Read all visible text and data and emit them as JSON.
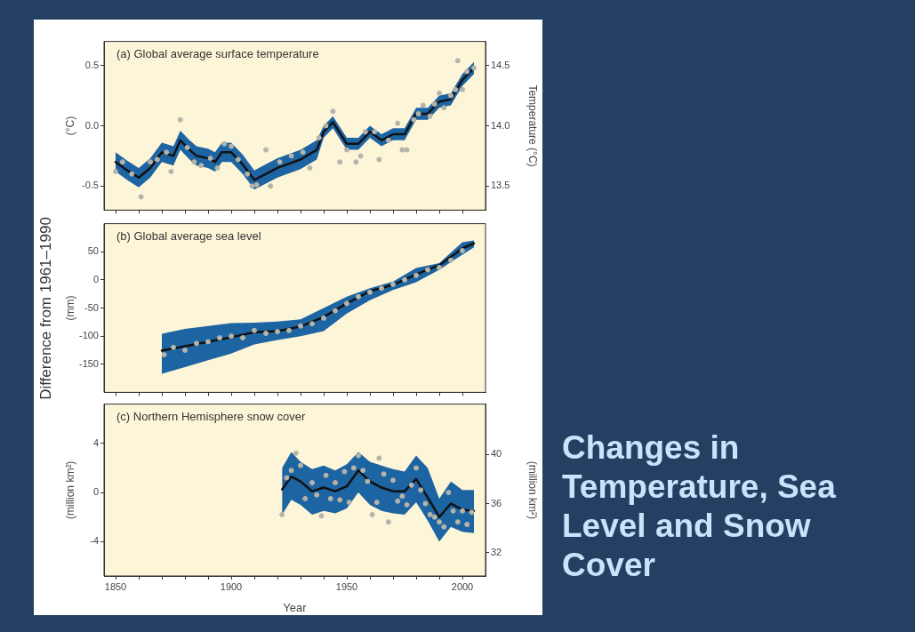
{
  "chart_data": [
    {
      "type": "line",
      "title": "(a) Global average surface temperature",
      "ylabel": "(°C)",
      "y2label": "Temperature (°C)",
      "xlim": [
        1845,
        2010
      ],
      "xticks": [
        1850,
        {
          "value": 1860,
          "label": null
        },
        {
          "value": 1870,
          "label": null
        },
        {
          "value": 1880,
          "label": null
        },
        {
          "value": 1890,
          "label": null
        },
        1900,
        {
          "value": 1910,
          "label": null
        },
        {
          "value": 1920,
          "label": null
        },
        {
          "value": 1930,
          "label": null
        },
        {
          "value": 1940,
          "label": null
        },
        1950,
        {
          "value": 1960,
          "label": null
        },
        {
          "value": 1970,
          "label": null
        },
        {
          "value": 1980,
          "label": null
        },
        {
          "value": 1990,
          "label": null
        },
        2000
      ],
      "ylim": [
        -0.7,
        0.7
      ],
      "yticks": [
        -0.5,
        {
          "value": 0,
          "label": "0.0"
        },
        0.5
      ],
      "y2lim": [
        13.3,
        14.7
      ],
      "y2ticks": [
        13.5,
        {
          "value": 14,
          "label": "14.0"
        },
        14.5
      ],
      "tick_labels": "y",
      "grid": false,
      "legend": false,
      "series": [
        {
          "type": "scatter",
          "marker": "circle",
          "color": "#b4b4aa",
          "x": [
            1850,
            1853,
            1857,
            1861,
            1865,
            1868,
            1872,
            1874,
            1878,
            1881,
            1884,
            1887,
            1891,
            1894,
            1897,
            1900,
            1903,
            1907,
            1909,
            1911,
            1915,
            1917,
            1921,
            1926,
            1931,
            1934,
            1938,
            1941,
            1944,
            1947,
            1950,
            1954,
            1956,
            1958,
            1962,
            1964,
            1968,
            1972,
            1974,
            1976,
            1979,
            1981,
            1983,
            1986,
            1988,
            1990,
            1992,
            1995,
            1997,
            1998,
            2000,
            2002,
            2005
          ],
          "values": [
            -0.38,
            -0.3,
            -0.4,
            -0.59,
            -0.3,
            -0.28,
            -0.22,
            -0.38,
            0.05,
            -0.18,
            -0.3,
            -0.33,
            -0.27,
            -0.35,
            -0.15,
            -0.17,
            -0.28,
            -0.4,
            -0.5,
            -0.49,
            -0.2,
            -0.5,
            -0.3,
            -0.25,
            -0.22,
            -0.35,
            -0.1,
            0,
            0.12,
            -0.3,
            -0.2,
            -0.3,
            -0.25,
            -0.05,
            -0.05,
            -0.28,
            -0.12,
            0.02,
            -0.2,
            -0.2,
            0.05,
            0.1,
            0.17,
            0.08,
            0.18,
            0.27,
            0.15,
            0.25,
            0.3,
            0.54,
            0.3,
            0.45,
            0.48
          ]
        },
        {
          "type": "line",
          "color": "#111111",
          "x": [
            1850,
            1855,
            1860,
            1865,
            1870,
            1875,
            1878,
            1882,
            1885,
            1890,
            1893,
            1896,
            1900,
            1905,
            1910,
            1913,
            1920,
            1930,
            1937,
            1940,
            1944,
            1950,
            1955,
            1960,
            1965,
            1970,
            1975,
            1980,
            1985,
            1990,
            1995,
            2000,
            2005
          ],
          "values": [
            -0.3,
            -0.37,
            -0.43,
            -0.35,
            -0.22,
            -0.25,
            -0.12,
            -0.2,
            -0.25,
            -0.27,
            -0.3,
            -0.22,
            -0.22,
            -0.32,
            -0.45,
            -0.42,
            -0.35,
            -0.28,
            -0.2,
            -0.05,
            0.03,
            -0.15,
            -0.15,
            -0.05,
            -0.12,
            -0.07,
            -0.07,
            0.1,
            0.1,
            0.2,
            0.22,
            0.38,
            0.48
          ],
          "lower": [
            -0.38,
            -0.45,
            -0.51,
            -0.43,
            -0.3,
            -0.33,
            -0.2,
            -0.28,
            -0.33,
            -0.35,
            -0.38,
            -0.3,
            -0.3,
            -0.4,
            -0.53,
            -0.5,
            -0.43,
            -0.36,
            -0.28,
            -0.1,
            -0.02,
            -0.2,
            -0.2,
            -0.1,
            -0.17,
            -0.12,
            -0.12,
            0.05,
            0.05,
            0.15,
            0.17,
            0.33,
            0.43
          ],
          "upper": [
            -0.22,
            -0.29,
            -0.35,
            -0.27,
            -0.14,
            -0.17,
            -0.04,
            -0.12,
            -0.17,
            -0.19,
            -0.22,
            -0.14,
            -0.14,
            -0.24,
            -0.37,
            -0.34,
            -0.27,
            -0.2,
            -0.12,
            0,
            0.08,
            -0.1,
            -0.1,
            0,
            -0.07,
            -0.02,
            -0.02,
            0.15,
            0.15,
            0.25,
            0.27,
            0.43,
            0.53
          ]
        }
      ]
    },
    {
      "type": "line",
      "title": "(b) Global average sea level",
      "ylabel": "(mm)",
      "annotations": [
        "Difference from 1961–1990"
      ],
      "xlim": [
        1845,
        2010
      ],
      "xticks": [
        1850,
        {
          "value": 1860,
          "label": null
        },
        {
          "value": 1870,
          "label": null
        },
        {
          "value": 1880,
          "label": null
        },
        {
          "value": 1890,
          "label": null
        },
        1900,
        {
          "value": 1910,
          "label": null
        },
        {
          "value": 1920,
          "label": null
        },
        {
          "value": 1930,
          "label": null
        },
        {
          "value": 1940,
          "label": null
        },
        1950,
        {
          "value": 1960,
          "label": null
        },
        {
          "value": 1970,
          "label": null
        },
        {
          "value": 1980,
          "label": null
        },
        {
          "value": 1990,
          "label": null
        },
        2000
      ],
      "ylim": [
        -200,
        100
      ],
      "yticks": [
        -150,
        -100,
        -50,
        0,
        50
      ],
      "tick_labels": "y",
      "grid": false,
      "legend": false,
      "series": [
        {
          "type": "scatter",
          "marker": "circle",
          "color": "#b4b4aa",
          "x": [
            1871,
            1875,
            1880,
            1885,
            1890,
            1895,
            1900,
            1905,
            1910,
            1915,
            1920,
            1925,
            1930,
            1935,
            1940,
            1945,
            1950,
            1955,
            1960,
            1965,
            1970,
            1975,
            1980,
            1985,
            1990,
            1995,
            2000
          ],
          "values": [
            -133,
            -120,
            -125,
            -113,
            -110,
            -103,
            -100,
            -103,
            -90,
            -95,
            -92,
            -90,
            -82,
            -78,
            -68,
            -55,
            -42,
            -30,
            -22,
            -15,
            -8,
            0,
            8,
            18,
            22,
            35,
            52
          ]
        },
        {
          "type": "line",
          "color": "#111111",
          "x": [
            1870,
            1880,
            1890,
            1900,
            1910,
            1920,
            1930,
            1940,
            1950,
            1960,
            1970,
            1980,
            1990,
            2000,
            2005
          ],
          "values": [
            -126,
            -118,
            -110,
            -102,
            -93,
            -91,
            -83,
            -66,
            -42,
            -20,
            -9,
            10,
            26,
            56,
            65
          ],
          "lower": [
            -167,
            -155,
            -143,
            -131,
            -115,
            -107,
            -100,
            -91,
            -60,
            -36,
            -18,
            -4,
            18,
            45,
            58
          ],
          "upper": [
            -96,
            -87,
            -82,
            -77,
            -76,
            -74,
            -70,
            -50,
            -30,
            -15,
            -3,
            21,
            30,
            67,
            70
          ]
        }
      ]
    },
    {
      "type": "line",
      "title": "(c) Northern Hemisphere snow cover",
      "xlabel": "Year",
      "ylabel": "(million km²)",
      "y2label": "(million km²)",
      "xlim": [
        1845,
        2010
      ],
      "xticks": [
        1850,
        {
          "value": 1860,
          "label": null
        },
        {
          "value": 1870,
          "label": null
        },
        {
          "value": 1880,
          "label": null
        },
        {
          "value": 1890,
          "label": null
        },
        1900,
        {
          "value": 1910,
          "label": null
        },
        {
          "value": 1920,
          "label": null
        },
        {
          "value": 1930,
          "label": null
        },
        {
          "value": 1940,
          "label": null
        },
        1950,
        {
          "value": 1960,
          "label": null
        },
        {
          "value": 1970,
          "label": null
        },
        {
          "value": 1980,
          "label": null
        },
        {
          "value": 1990,
          "label": null
        },
        2000
      ],
      "ylim": [
        -6.8,
        7.2
      ],
      "yticks": [
        -4,
        0,
        4
      ],
      "y2lim": [
        30.1,
        44.1
      ],
      "y2ticks": [
        32,
        36,
        40
      ],
      "grid": false,
      "legend": false,
      "series": [
        {
          "type": "scatter",
          "marker": "circle",
          "color": "#b4b4aa",
          "x": [
            1922,
            1924,
            1926,
            1928,
            1930,
            1932,
            1935,
            1937,
            1939,
            1941,
            1943,
            1945,
            1947,
            1949,
            1951,
            1953,
            1955,
            1957,
            1959,
            1961,
            1963,
            1964,
            1966,
            1968,
            1970,
            1972,
            1974,
            1976,
            1978,
            1980,
            1982,
            1984,
            1986,
            1988,
            1990,
            1992,
            1994,
            1996,
            1998,
            2000,
            2002,
            2004
          ],
          "values": [
            -1.8,
            1.2,
            1.8,
            3.2,
            2.2,
            -0.5,
            0.8,
            -0.2,
            -1.9,
            1.4,
            -0.5,
            0.8,
            -0.6,
            1.7,
            -0.8,
            2,
            3,
            1.8,
            0.9,
            -1.8,
            -0.8,
            2.8,
            1.5,
            -2.4,
            1,
            -0.7,
            -0.3,
            -1,
            0.6,
            2,
            0.2,
            -0.9,
            -1.8,
            -2,
            -2.4,
            -2.8,
            0,
            -1.5,
            -2.4,
            -1.5,
            -2.6,
            -1.6
          ]
        },
        {
          "type": "line",
          "color": "#111111",
          "x": [
            1922,
            1926,
            1930,
            1935,
            1940,
            1945,
            1950,
            1955,
            1960,
            1965,
            1970,
            1975,
            1980,
            1985,
            1990,
            1995,
            2000,
            2005
          ],
          "values": [
            0.25,
            1.3,
            0.9,
            0.1,
            0.4,
            0.1,
            0.5,
            1.8,
            0.9,
            0.4,
            0.1,
            0.1,
            1.1,
            -0.4,
            -2,
            -0.9,
            -1.4,
            -1.5
          ],
          "lower": [
            -1.8,
            -0.6,
            -1,
            -1.8,
            -1.5,
            -1.7,
            -1.3,
            0,
            -1,
            -1.5,
            -1.7,
            -1.8,
            -0.8,
            -2.3,
            -4,
            -2.8,
            -3.2,
            -3.3
          ],
          "upper": [
            2,
            3.3,
            2.5,
            1.9,
            2.2,
            1.8,
            2.3,
            3.3,
            2.5,
            2.2,
            1.9,
            1.7,
            3,
            2,
            -0.5,
            0.9,
            0.2,
            0.2
          ]
        }
      ]
    },
    {
      "type": "other",
      "title": "Changes in Temperature, Sea Level and Snow Cover"
    }
  ]
}
